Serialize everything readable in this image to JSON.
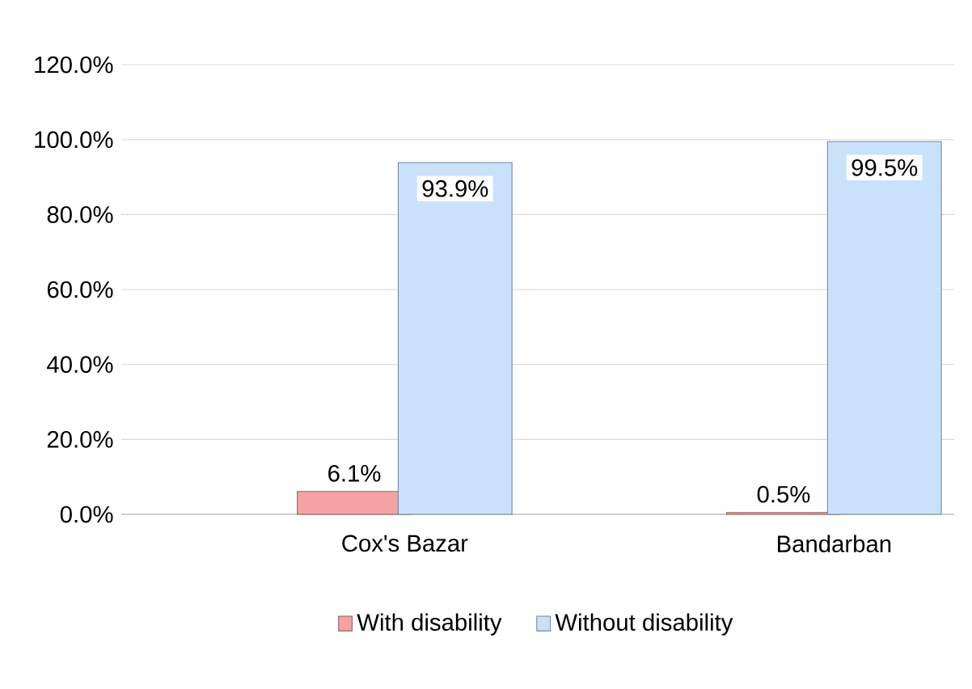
{
  "chart_data": {
    "type": "bar",
    "categories": [
      "Cox's Bazar",
      "Bandarban"
    ],
    "series": [
      {
        "name": "With disability",
        "color": "#f4a3a3",
        "values": [
          6.1,
          0.5
        ],
        "value_labels": [
          "6.1%",
          "0.5%"
        ]
      },
      {
        "name": "Without disability",
        "color": "#c9e2fa",
        "values": [
          93.9,
          99.5
        ],
        "value_labels": [
          "93.9%",
          "99.5%"
        ]
      }
    ],
    "ylim": [
      0,
      120
    ],
    "yticks": [
      {
        "value": 0,
        "label": "0.0%"
      },
      {
        "value": 20,
        "label": "20.0%"
      },
      {
        "value": 40,
        "label": "40.0%"
      },
      {
        "value": 60,
        "label": "60.0%"
      },
      {
        "value": 80,
        "label": "80.0%"
      },
      {
        "value": 100,
        "label": "100.0%"
      },
      {
        "value": 120,
        "label": "120.0%"
      }
    ],
    "grid": "y",
    "legend": "bottom"
  }
}
